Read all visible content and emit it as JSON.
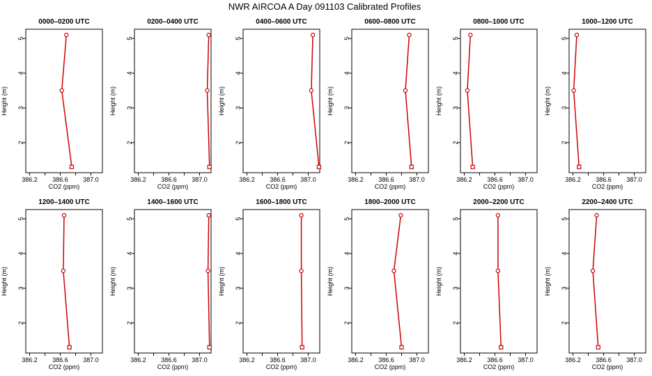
{
  "chart_data": {
    "type": "line",
    "title": "NWR AIRCOA A  Day 091103  Calibrated Profiles",
    "xlabel": "CO2 (ppm)",
    "ylabel": "Height (m)",
    "xlim": [
      386.15,
      387.15
    ],
    "ylim": [
      1.3,
      5.1
    ],
    "x_ticks": [
      "386.2",
      "386.6",
      "387.0"
    ],
    "y_ticks": [
      "2",
      "3",
      "4",
      "5"
    ],
    "heights": [
      5.1,
      3.5,
      1.3
    ],
    "colors": {
      "line": "#cc0000",
      "marker": "#cc0000",
      "axis": "#000000"
    },
    "panels": [
      {
        "title": "0000–0200 UTC",
        "co2": [
          386.68,
          386.62,
          386.75
        ]
      },
      {
        "title": "0200–0400 UTC",
        "co2": [
          387.12,
          387.1,
          387.13
        ]
      },
      {
        "title": "0400–0600 UTC",
        "co2": [
          387.06,
          387.04,
          387.14
        ]
      },
      {
        "title": "0600–0800 UTC",
        "co2": [
          386.9,
          386.85,
          386.93
        ]
      },
      {
        "title": "0800–1000 UTC",
        "co2": [
          386.28,
          386.24,
          386.31
        ]
      },
      {
        "title": "1000–1200 UTC",
        "co2": [
          386.25,
          386.21,
          386.28
        ]
      },
      {
        "title": "1200–1400 UTC",
        "co2": [
          386.65,
          386.64,
          386.72
        ]
      },
      {
        "title": "1400–1600 UTC",
        "co2": [
          387.12,
          387.11,
          387.13
        ]
      },
      {
        "title": "1600–1800 UTC",
        "co2": [
          386.91,
          386.91,
          386.92
        ]
      },
      {
        "title": "1800–2000 UTC",
        "co2": [
          386.79,
          386.7,
          386.8
        ]
      },
      {
        "title": "2000–2200 UTC",
        "co2": [
          386.64,
          386.64,
          386.68
        ]
      },
      {
        "title": "2200–2400 UTC",
        "co2": [
          386.51,
          386.46,
          386.53
        ]
      }
    ]
  }
}
